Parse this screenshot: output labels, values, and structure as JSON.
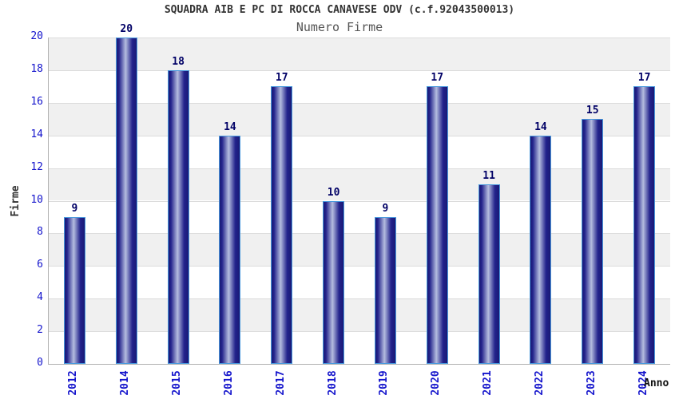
{
  "chart_data": {
    "type": "bar",
    "title": "SQUADRA AIB E PC DI ROCCA CANAVESE ODV (c.f.92043500013)",
    "subtitle": "Numero Firme",
    "xlabel": "Anno",
    "ylabel": "Firme",
    "categories": [
      "2012",
      "2014",
      "2015",
      "2016",
      "2017",
      "2018",
      "2019",
      "2020",
      "2021",
      "2022",
      "2023",
      "2024"
    ],
    "values": [
      9,
      20,
      18,
      14,
      17,
      10,
      9,
      17,
      11,
      14,
      15,
      17
    ],
    "ylim": [
      0,
      20
    ],
    "ytick_step": 2,
    "grid": true,
    "legend": "none",
    "colors": {
      "bar_edge_dark": "#191975",
      "bar_mid": "#23238c",
      "bar_highlight": "#b4bcdf",
      "bar_border": "#4a9ade",
      "band_gray": "#f0f0f0",
      "band_white": "#ffffff",
      "gridline": "#dcdcdc",
      "axis_line": "#b0b0b0",
      "tick_text": "#1414cc",
      "value_text": "#000066",
      "title_text": "#333333",
      "subtitle_text": "#555555"
    }
  }
}
